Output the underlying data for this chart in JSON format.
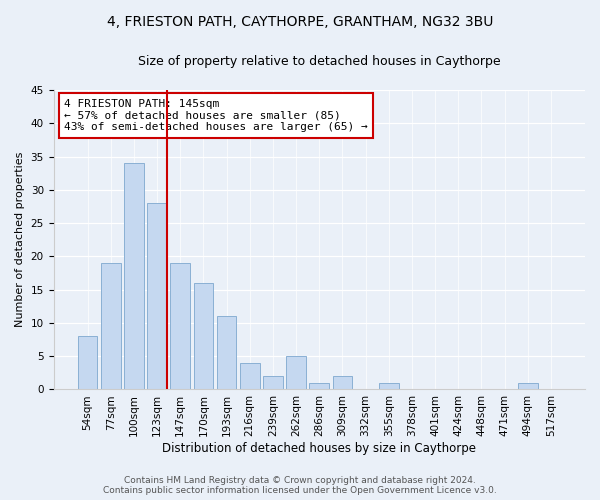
{
  "title": "4, FRIESTON PATH, CAYTHORPE, GRANTHAM, NG32 3BU",
  "subtitle": "Size of property relative to detached houses in Caythorpe",
  "xlabel": "Distribution of detached houses by size in Caythorpe",
  "ylabel": "Number of detached properties",
  "categories": [
    "54sqm",
    "77sqm",
    "100sqm",
    "123sqm",
    "147sqm",
    "170sqm",
    "193sqm",
    "216sqm",
    "239sqm",
    "262sqm",
    "286sqm",
    "309sqm",
    "332sqm",
    "355sqm",
    "378sqm",
    "401sqm",
    "424sqm",
    "448sqm",
    "471sqm",
    "494sqm",
    "517sqm"
  ],
  "values": [
    8,
    19,
    34,
    28,
    19,
    16,
    11,
    4,
    2,
    5,
    1,
    2,
    0,
    1,
    0,
    0,
    0,
    0,
    0,
    1,
    0
  ],
  "bar_color": "#c5d8f0",
  "bar_edge_color": "#8ab0d4",
  "ref_line_color": "#cc0000",
  "annotation_text": "4 FRIESTON PATH: 145sqm\n← 57% of detached houses are smaller (85)\n43% of semi-detached houses are larger (65) →",
  "annotation_box_color": "#ffffff",
  "annotation_box_edge": "#cc0000",
  "ylim": [
    0,
    45
  ],
  "yticks": [
    0,
    5,
    10,
    15,
    20,
    25,
    30,
    35,
    40,
    45
  ],
  "background_color": "#eaf0f8",
  "footer_text": "Contains HM Land Registry data © Crown copyright and database right 2024.\nContains public sector information licensed under the Open Government Licence v3.0.",
  "title_fontsize": 10,
  "subtitle_fontsize": 9,
  "xlabel_fontsize": 8.5,
  "ylabel_fontsize": 8,
  "tick_fontsize": 7.5,
  "annotation_fontsize": 8,
  "footer_fontsize": 6.5
}
